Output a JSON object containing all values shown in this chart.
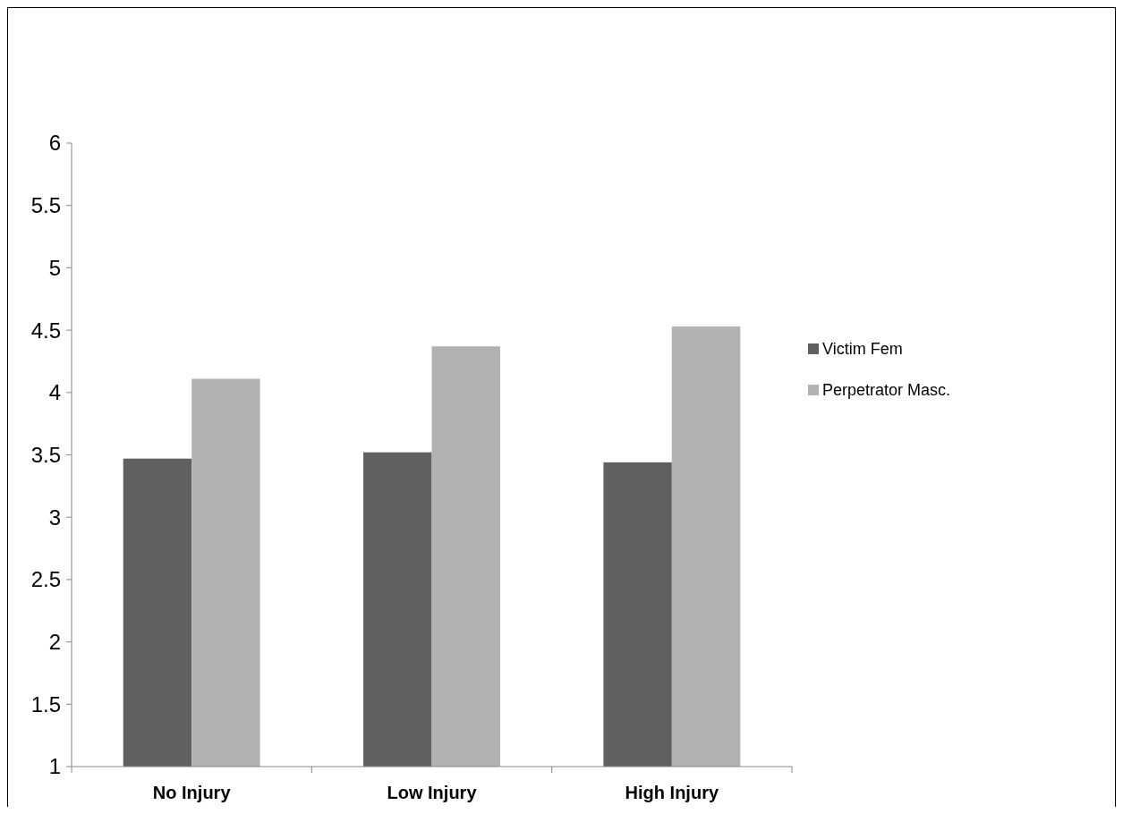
{
  "chart_data": {
    "type": "bar",
    "categories": [
      "No Injury",
      "Low Injury",
      "High Injury"
    ],
    "series": [
      {
        "name": "Victim Fem",
        "color": "#606060",
        "values": [
          3.47,
          3.52,
          3.44
        ]
      },
      {
        "name": "Perpetrator Masc.",
        "color": "#b2b2b2",
        "values": [
          4.11,
          4.37,
          4.53
        ]
      }
    ],
    "ylim": [
      1,
      6
    ],
    "yticks": [
      1,
      1.5,
      2,
      2.5,
      3,
      3.5,
      4,
      4.5,
      5,
      5.5,
      6
    ],
    "grid": false,
    "legend": "right"
  }
}
